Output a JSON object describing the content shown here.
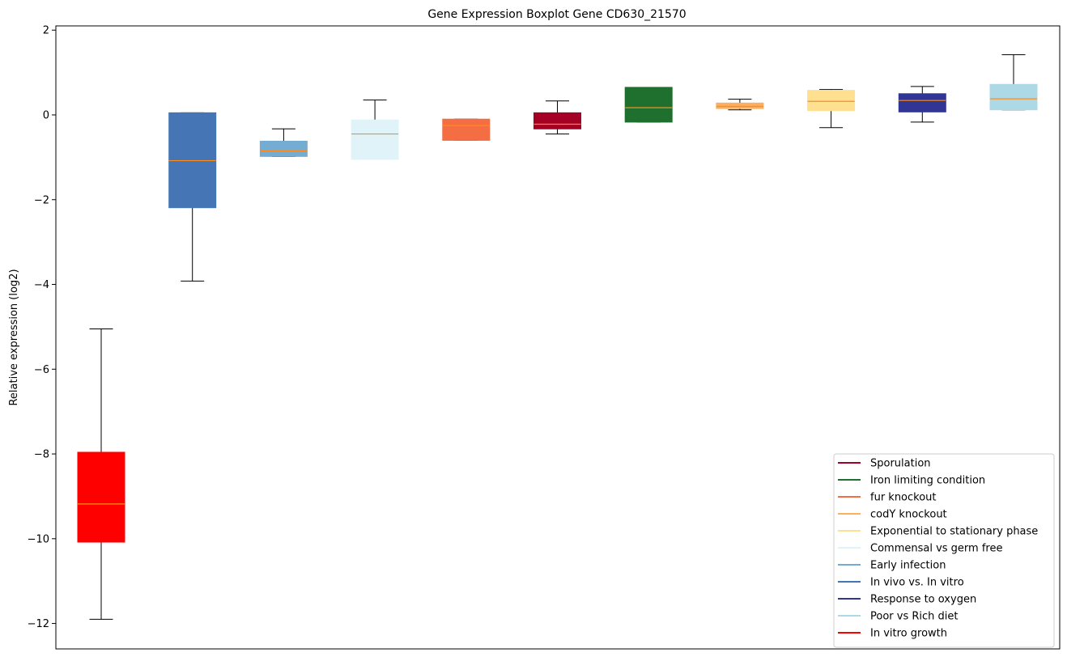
{
  "chart_data": {
    "type": "boxplot",
    "title": "Gene Expression Boxplot Gene CD630_21570",
    "xlabel": "",
    "ylabel": "Relative expression (log2)",
    "ylim": [
      -12.6,
      2.1
    ],
    "yticks": [
      2,
      0,
      -2,
      -4,
      -6,
      -8,
      -10,
      -12
    ],
    "ytick_labels": [
      "2",
      "0",
      "−2",
      "−4",
      "−6",
      "−8",
      "−10",
      "−12"
    ],
    "grid": false,
    "legend_position": "lower-right",
    "median_color": "#ff8c1a",
    "boxes": [
      {
        "name": "In vitro growth",
        "color": "#ff0000",
        "whisker_low": -11.9,
        "q1": -10.08,
        "median": -9.18,
        "q3": -7.96,
        "whisker_high": -5.05
      },
      {
        "name": "In vivo vs. In vitro",
        "color": "#4575b4",
        "whisker_low": -3.92,
        "q1": -2.19,
        "median": -1.08,
        "q3": 0.05,
        "whisker_high": 0.05
      },
      {
        "name": "Early infection",
        "color": "#74add1",
        "whisker_low": -0.98,
        "q1": -0.98,
        "median": -0.85,
        "q3": -0.62,
        "whisker_high": -0.33
      },
      {
        "name": "Commensal vs germ free",
        "color": "#e0f3f8",
        "whisker_low": -1.05,
        "q1": -1.05,
        "median": -0.45,
        "q3": -0.12,
        "whisker_high": 0.35
      },
      {
        "name": "fur knockout",
        "color": "#f46d43",
        "whisker_low": -0.6,
        "q1": -0.6,
        "median": -0.25,
        "q3": -0.1,
        "whisker_high": -0.1
      },
      {
        "name": "Sporulation",
        "color": "#a50026",
        "whisker_low": -0.45,
        "q1": -0.33,
        "median": -0.22,
        "q3": 0.05,
        "whisker_high": 0.33
      },
      {
        "name": "Iron limiting condition",
        "color": "#1f6f2e",
        "whisker_low": -0.17,
        "q1": -0.17,
        "median": 0.17,
        "q3": 0.65,
        "whisker_high": 0.65
      },
      {
        "name": "codY knockout",
        "color": "#fdae61",
        "whisker_low": 0.12,
        "q1": 0.15,
        "median": 0.2,
        "q3": 0.28,
        "whisker_high": 0.37
      },
      {
        "name": "Exponential to stationary phase",
        "color": "#fee090",
        "whisker_low": -0.3,
        "q1": 0.1,
        "median": 0.32,
        "q3": 0.58,
        "whisker_high": 0.6
      },
      {
        "name": "Response to oxygen",
        "color": "#313695",
        "whisker_low": -0.17,
        "q1": 0.07,
        "median": 0.34,
        "q3": 0.5,
        "whisker_high": 0.67
      },
      {
        "name": "Poor vs Rich diet",
        "color": "#add8e6",
        "whisker_low": 0.12,
        "q1": 0.12,
        "median": 0.38,
        "q3": 0.72,
        "whisker_high": 1.42
      }
    ],
    "legend": [
      {
        "label": "Sporulation",
        "color": "#a50026"
      },
      {
        "label": "Iron limiting condition",
        "color": "#1f6f2e"
      },
      {
        "label": "fur knockout",
        "color": "#f46d43"
      },
      {
        "label": "codY knockout",
        "color": "#fdae61"
      },
      {
        "label": "Exponential to stationary phase",
        "color": "#fee090"
      },
      {
        "label": "Commensal vs germ free",
        "color": "#e0f3f8"
      },
      {
        "label": "Early infection",
        "color": "#74add1"
      },
      {
        "label": "In vivo vs. In vitro",
        "color": "#4575b4"
      },
      {
        "label": "Response to oxygen",
        "color": "#313695"
      },
      {
        "label": "Poor vs Rich diet",
        "color": "#add8e6"
      },
      {
        "label": "In vitro growth",
        "color": "#ff0000"
      }
    ]
  }
}
